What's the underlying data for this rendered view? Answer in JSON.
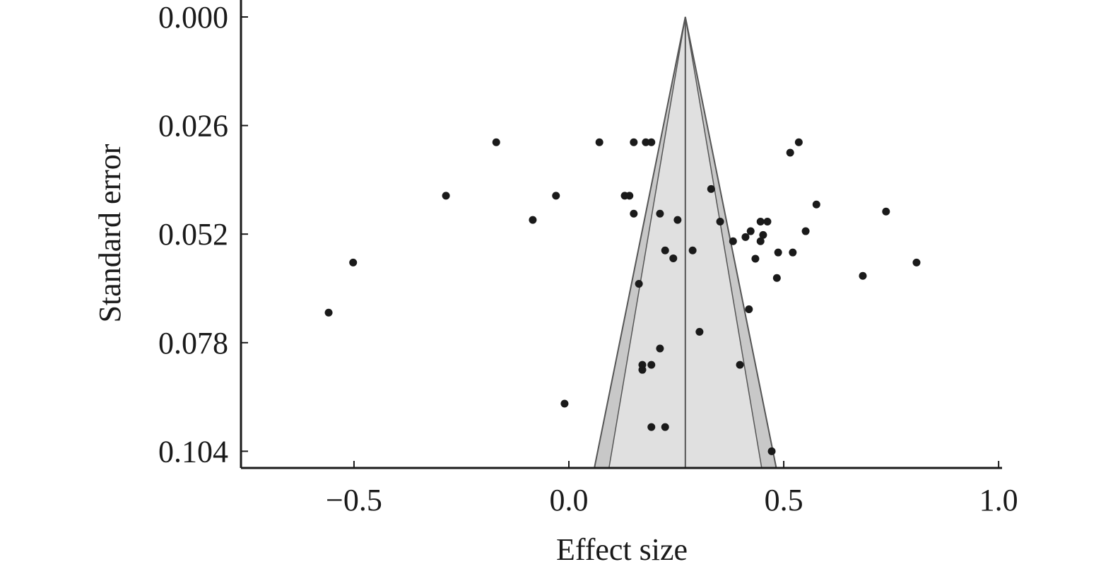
{
  "chart_data": {
    "type": "scatter",
    "subtype": "funnel-plot",
    "title": "",
    "xlabel": "Effect size",
    "ylabel": "Standard error",
    "xlim": [
      -0.763,
      1.008
    ],
    "ylim": [
      0,
      0.108
    ],
    "y_inverted": true,
    "xticks": [
      -0.5,
      0.0,
      0.5,
      1.0
    ],
    "xtick_labels": [
      "−0.5",
      "0.0",
      "0.5",
      "1.0"
    ],
    "yticks": [
      0.0,
      0.026,
      0.052,
      0.078,
      0.104
    ],
    "ytick_labels": [
      "0.000",
      "0.026",
      "0.052",
      "0.078",
      "0.104"
    ],
    "grid": false,
    "funnel": {
      "center_effect": 0.271,
      "outer_z": 1.96,
      "inner_z": 1.645,
      "outer_fill": "#c8c8c8",
      "inner_fill": "#e0e0e0",
      "line_color": "#555555"
    },
    "point_color": "#1a1a1a",
    "points": [
      {
        "x": -0.169,
        "y": 0.03
      },
      {
        "x": 0.071,
        "y": 0.03
      },
      {
        "x": 0.151,
        "y": 0.03
      },
      {
        "x": 0.179,
        "y": 0.03
      },
      {
        "x": 0.192,
        "y": 0.03
      },
      {
        "x": 0.535,
        "y": 0.03
      },
      {
        "x": 0.515,
        "y": 0.0325
      },
      {
        "x": -0.286,
        "y": 0.0428
      },
      {
        "x": -0.03,
        "y": 0.0428
      },
      {
        "x": 0.13,
        "y": 0.0428
      },
      {
        "x": 0.141,
        "y": 0.0428
      },
      {
        "x": 0.331,
        "y": 0.0412
      },
      {
        "x": 0.576,
        "y": 0.0449
      },
      {
        "x": 0.738,
        "y": 0.0466
      },
      {
        "x": -0.084,
        "y": 0.0486
      },
      {
        "x": 0.151,
        "y": 0.0471
      },
      {
        "x": 0.212,
        "y": 0.0471
      },
      {
        "x": 0.253,
        "y": 0.0486
      },
      {
        "x": 0.352,
        "y": 0.049
      },
      {
        "x": 0.446,
        "y": 0.049
      },
      {
        "x": 0.462,
        "y": 0.049
      },
      {
        "x": 0.551,
        "y": 0.0513
      },
      {
        "x": 0.423,
        "y": 0.0513
      },
      {
        "x": 0.411,
        "y": 0.0527
      },
      {
        "x": 0.452,
        "y": 0.0522
      },
      {
        "x": 0.382,
        "y": 0.0537
      },
      {
        "x": 0.446,
        "y": 0.0537
      },
      {
        "x": 0.224,
        "y": 0.0559
      },
      {
        "x": 0.288,
        "y": 0.0559
      },
      {
        "x": 0.487,
        "y": 0.0564
      },
      {
        "x": 0.521,
        "y": 0.0564
      },
      {
        "x": 0.243,
        "y": 0.0578
      },
      {
        "x": 0.434,
        "y": 0.0579
      },
      {
        "x": -0.502,
        "y": 0.0588
      },
      {
        "x": 0.809,
        "y": 0.0588
      },
      {
        "x": 0.684,
        "y": 0.062
      },
      {
        "x": 0.484,
        "y": 0.0625
      },
      {
        "x": 0.163,
        "y": 0.0639
      },
      {
        "x": -0.559,
        "y": 0.0708
      },
      {
        "x": 0.419,
        "y": 0.07
      },
      {
        "x": 0.304,
        "y": 0.0754
      },
      {
        "x": 0.212,
        "y": 0.0794
      },
      {
        "x": 0.171,
        "y": 0.0833
      },
      {
        "x": 0.192,
        "y": 0.0833
      },
      {
        "x": 0.398,
        "y": 0.0833
      },
      {
        "x": 0.171,
        "y": 0.0845
      },
      {
        "x": -0.01,
        "y": 0.0926
      },
      {
        "x": 0.192,
        "y": 0.0982
      },
      {
        "x": 0.224,
        "y": 0.0982
      },
      {
        "x": 0.472,
        "y": 0.104
      }
    ]
  }
}
